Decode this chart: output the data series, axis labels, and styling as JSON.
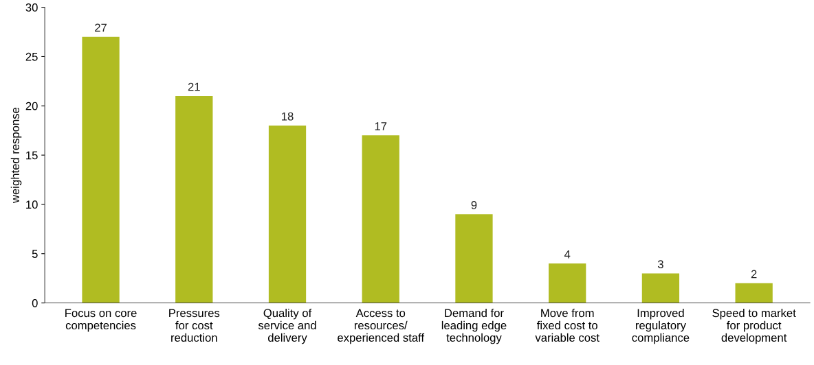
{
  "chart_data": {
    "type": "bar",
    "ylabel": "weighted response",
    "categories": [
      "Focus on core\ncompetencies",
      "Pressures\nfor cost\nreduction",
      "Quality of\nservice and\ndelivery",
      "Access to\nresources/\nexperienced staff",
      "Demand for\nleading edge\ntechnology",
      "Move from\nfixed cost to\nvariable cost",
      "Improved\nregulatory\ncompliance",
      "Speed to market\nfor product\ndevelopment"
    ],
    "values": [
      27,
      21,
      18,
      17,
      9,
      4,
      3,
      2
    ],
    "color": "#b0bc22",
    "ylim": [
      0,
      30
    ],
    "yticks": [
      0,
      5,
      10,
      15,
      20,
      25,
      30
    ],
    "data_labels": true,
    "grid": false
  }
}
